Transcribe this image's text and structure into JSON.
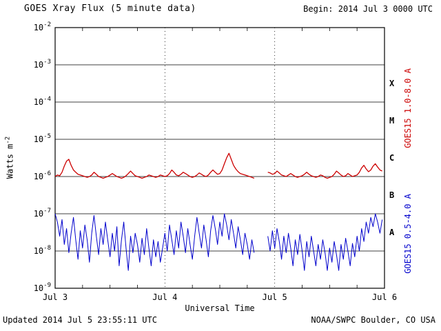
{
  "header": {
    "title": "GOES Xray Flux (5 minute data)",
    "begin_label": "Begin: 2014 Jul 3 0000 UTC"
  },
  "footer": {
    "updated": "Updated 2014 Jul 5 23:55:11 UTC",
    "source": "NOAA/SWPC Boulder, CO USA"
  },
  "colors": {
    "long_series": "#cc0000",
    "short_series": "#0000cc",
    "axis": "#000000",
    "background": "#ffffff"
  },
  "chart_data": {
    "type": "line",
    "title": "GOES Xray Flux (5 minute data)",
    "xlabel": "Universal Time",
    "ylabel_base": "Watts m",
    "ylabel_exp": "-2",
    "x_unit": "hours since 2014 Jul 3 0000 UTC",
    "x_range_hours": [
      0,
      72
    ],
    "x_tick_hours": [
      0,
      24,
      48,
      72
    ],
    "x_tick_labels": [
      "Jul 3",
      "Jul 4",
      "Jul 5",
      "Jul 6"
    ],
    "y_log_range": [
      -9,
      -2
    ],
    "ylim": [
      1e-09,
      0.01
    ],
    "y_tick_exponents": [
      -2,
      -3,
      -4,
      -5,
      -6,
      -7,
      -8,
      -9
    ],
    "flare_classes": [
      {
        "label": "X",
        "log_center": -3.5
      },
      {
        "label": "M",
        "log_center": -4.5
      },
      {
        "label": "C",
        "log_center": -5.5
      },
      {
        "label": "B",
        "log_center": -6.5
      },
      {
        "label": "A",
        "log_center": -7.5
      }
    ],
    "grid": {
      "horizontal": "solid line each decade",
      "vertical": "dotted line each day",
      "legend_position": "right-rotated"
    },
    "series": [
      {
        "name": "GOES15 1.0-8.0 A",
        "color": "#cc0000",
        "scale": 1e-06,
        "sample_hours": 0.5,
        "values": [
          1.0,
          1.1,
          1.05,
          1.3,
          1.9,
          2.6,
          2.9,
          2.0,
          1.5,
          1.3,
          1.15,
          1.1,
          1.05,
          1.0,
          0.95,
          1.0,
          1.1,
          1.3,
          1.15,
          1.0,
          0.95,
          0.9,
          0.95,
          1.0,
          1.1,
          1.2,
          1.1,
          1.0,
          0.95,
          0.9,
          0.95,
          1.05,
          1.2,
          1.4,
          1.2,
          1.05,
          1.0,
          0.95,
          0.9,
          0.95,
          1.0,
          1.1,
          1.05,
          1.0,
          0.95,
          1.0,
          1.1,
          1.05,
          1.0,
          1.05,
          1.2,
          1.5,
          1.3,
          1.1,
          1.05,
          1.15,
          1.3,
          1.2,
          1.1,
          1.0,
          0.95,
          1.0,
          1.1,
          1.25,
          1.15,
          1.05,
          1.0,
          1.1,
          1.3,
          1.5,
          1.3,
          1.15,
          1.2,
          1.5,
          2.2,
          3.2,
          4.2,
          2.9,
          2.0,
          1.6,
          1.35,
          1.2,
          1.15,
          1.1,
          1.05,
          1.0,
          0.95,
          0.9,
          null,
          null,
          null,
          null,
          null,
          1.3,
          1.25,
          1.15,
          1.2,
          1.4,
          1.25,
          1.1,
          1.05,
          1.0,
          1.1,
          1.2,
          1.1,
          1.0,
          0.95,
          1.0,
          1.05,
          1.15,
          1.3,
          1.15,
          1.05,
          1.0,
          0.95,
          1.0,
          1.1,
          1.05,
          0.95,
          0.9,
          0.95,
          1.0,
          1.15,
          1.4,
          1.25,
          1.1,
          1.0,
          1.05,
          1.2,
          1.1,
          1.0,
          1.05,
          1.1,
          1.3,
          1.7,
          2.0,
          1.6,
          1.35,
          1.5,
          1.9,
          2.2,
          1.8,
          1.5,
          1.4
        ]
      },
      {
        "name": "GOES15 0.5-4.0 A",
        "color": "#0000cc",
        "scale": 1e-08,
        "sample_hours": 0.5,
        "values": [
          10,
          6,
          2.5,
          7,
          1.5,
          4,
          0.9,
          3,
          8,
          2,
          0.6,
          3.5,
          1.2,
          5,
          2,
          0.5,
          3,
          9,
          2.5,
          0.8,
          4,
          1.5,
          6,
          2,
          0.7,
          3,
          1,
          4.5,
          0.4,
          2,
          6,
          1.2,
          0.3,
          2.5,
          0.9,
          3,
          1.5,
          0.5,
          2.2,
          0.8,
          4,
          1.2,
          0.4,
          2,
          0.7,
          1.8,
          0.5,
          1.2,
          3,
          1,
          5,
          2,
          0.8,
          3.5,
          1.2,
          6,
          2.5,
          0.9,
          4,
          1.5,
          0.6,
          2.5,
          8,
          3,
          1.2,
          5,
          2,
          0.7,
          3.5,
          9,
          4,
          1.5,
          6,
          2.5,
          10,
          5,
          2,
          7,
          3,
          1.2,
          4.5,
          2,
          0.8,
          3,
          1.5,
          0.6,
          2,
          0.9,
          null,
          null,
          null,
          null,
          null,
          2.5,
          1,
          3.5,
          1.2,
          4,
          1.8,
          0.6,
          2.5,
          0.9,
          3,
          1.2,
          0.4,
          2,
          0.8,
          2.8,
          1,
          0.3,
          1.8,
          0.7,
          2.5,
          1,
          0.4,
          1.5,
          0.6,
          2,
          0.9,
          0.3,
          1.2,
          0.5,
          1.8,
          0.8,
          0.3,
          1.5,
          0.6,
          2.2,
          1,
          0.4,
          1.6,
          0.7,
          2.5,
          1,
          4,
          1.8,
          6,
          3,
          8,
          4.5,
          10,
          6,
          3,
          7
        ]
      }
    ]
  }
}
